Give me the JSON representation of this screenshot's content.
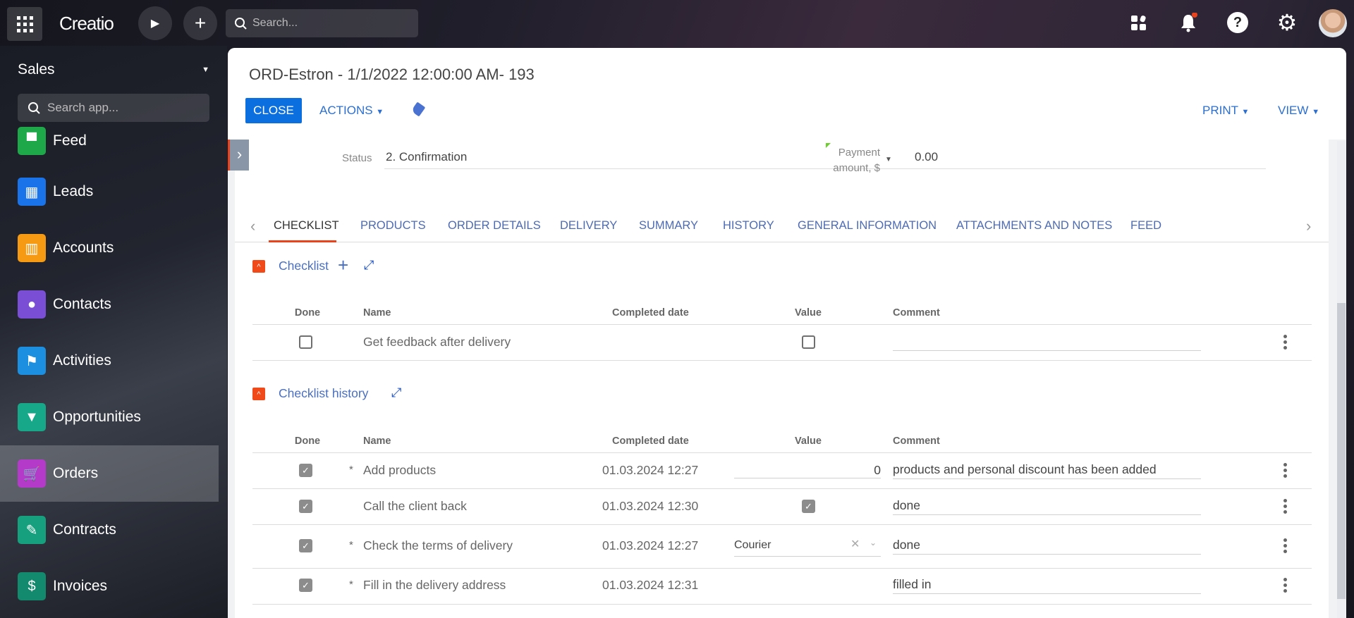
{
  "topbar": {
    "logo": "Creatio",
    "search_placeholder": "Search...",
    "notification_dot_color": "#e8431c"
  },
  "sidebar": {
    "workspace": "Sales",
    "search_placeholder": "Search app...",
    "items": [
      {
        "label": "Feed",
        "icon": "feed-icon",
        "color": "#1ea84a"
      },
      {
        "label": "Leads",
        "icon": "leads-icon",
        "color": "#1a73e8"
      },
      {
        "label": "Accounts",
        "icon": "accounts-icon",
        "color": "#f59a12"
      },
      {
        "label": "Contacts",
        "icon": "contacts-icon",
        "color": "#7a4fd6"
      },
      {
        "label": "Activities",
        "icon": "activities-icon",
        "color": "#1d8fe0"
      },
      {
        "label": "Opportunities",
        "icon": "opportunities-icon",
        "color": "#17a88a"
      },
      {
        "label": "Orders",
        "icon": "orders-icon",
        "color": "#b43bc9",
        "active": true
      },
      {
        "label": "Contracts",
        "icon": "contracts-icon",
        "color": "#16a07e"
      },
      {
        "label": "Invoices",
        "icon": "invoices-icon",
        "color": "#138a6d"
      }
    ]
  },
  "page": {
    "title": "ORD-Estron - 1/1/2022 12:00:00 AM- 193",
    "close": "CLOSE",
    "actions": "ACTIONS",
    "print": "PRINT",
    "view": "VIEW"
  },
  "fields": {
    "status_label": "Status",
    "status_value": "2. Confirmation",
    "payment_label_1": "Payment",
    "payment_label_2": "amount, $",
    "payment_value": "0.00"
  },
  "tabs": [
    "CHECKLIST",
    "PRODUCTS",
    "ORDER DETAILS",
    "DELIVERY",
    "SUMMARY",
    "HISTORY",
    "GENERAL INFORMATION",
    "ATTACHMENTS AND NOTES",
    "FEED"
  ],
  "checklist": {
    "title": "Checklist",
    "columns": [
      "Done",
      "Name",
      "Completed date",
      "Value",
      "Comment"
    ],
    "rows": [
      {
        "done": false,
        "required": false,
        "name": "Get feedback after delivery",
        "date": "",
        "value_type": "checkbox",
        "value": false,
        "comment": ""
      }
    ]
  },
  "history": {
    "title": "Checklist history",
    "columns": [
      "Done",
      "Name",
      "Completed date",
      "Value",
      "Comment"
    ],
    "rows": [
      {
        "done": true,
        "required": true,
        "name": "Add products",
        "date": "01.03.2024 12:27",
        "value_type": "number",
        "value": "0",
        "comment": "products and personal discount has been added"
      },
      {
        "done": true,
        "required": false,
        "name": "Call the client back",
        "date": "01.03.2024 12:30",
        "value_type": "checkbox",
        "value": true,
        "comment": "done"
      },
      {
        "done": true,
        "required": true,
        "name": "Check the terms of delivery",
        "date": "01.03.2024 12:27",
        "value_type": "lookup",
        "value": "Courier",
        "comment": "done"
      },
      {
        "done": true,
        "required": true,
        "name": "Fill in the delivery address",
        "date": "01.03.2024 12:31",
        "value_type": "none",
        "value": "",
        "comment": "filled in"
      }
    ]
  }
}
